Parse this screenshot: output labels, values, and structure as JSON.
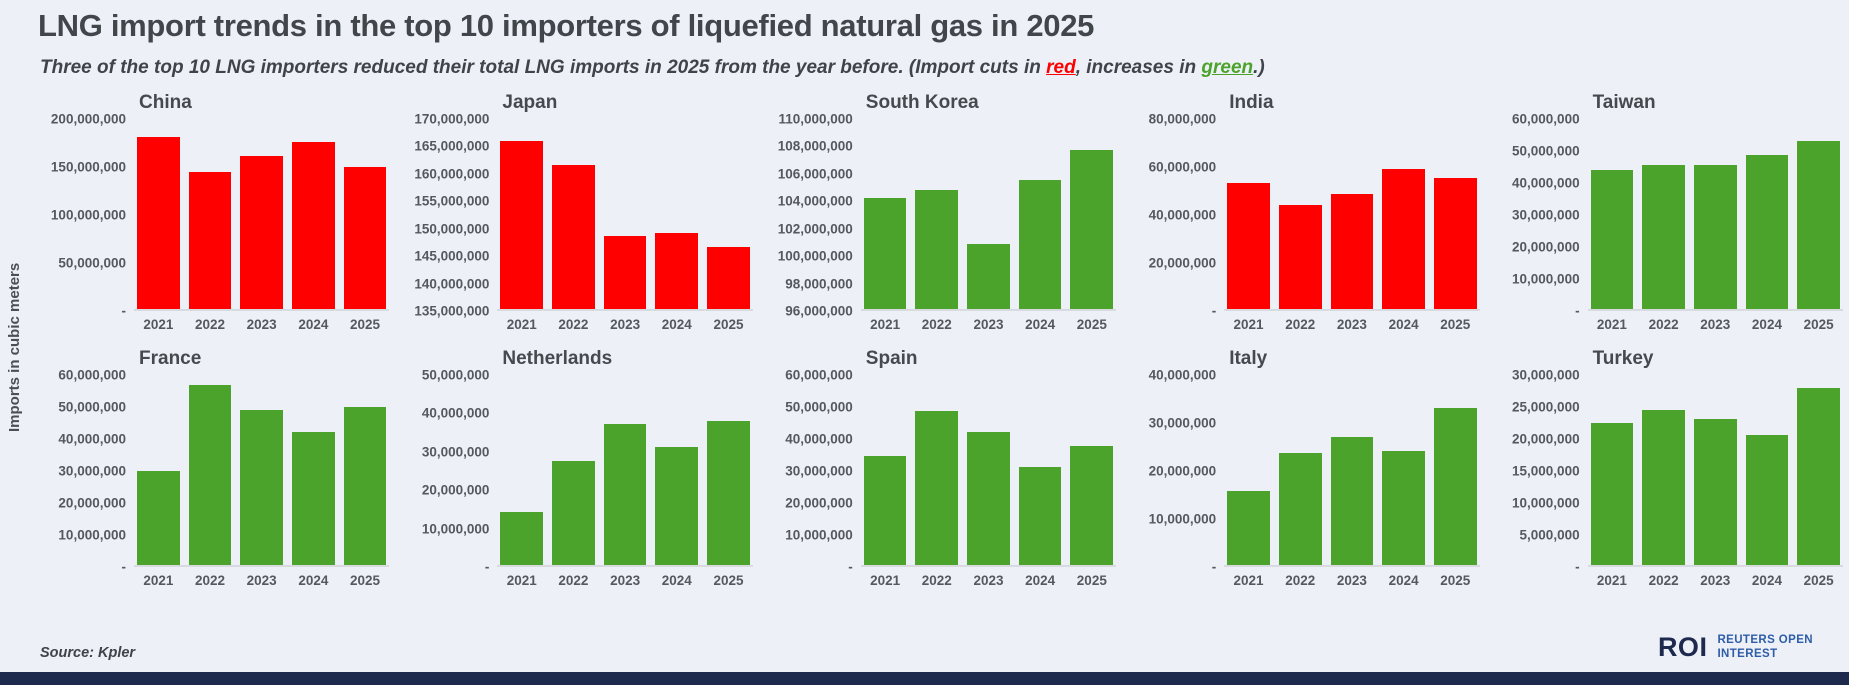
{
  "header": {
    "title": "LNG import trends in the top 10 importers of liquefied natural gas in 2025",
    "subtitle": {
      "before": "Three of the top 10 LNG importers reduced their total LNG imports in 2025 from the year before. (Import cuts in ",
      "red_word": "red",
      "middle": ", increases in ",
      "green_word": "green",
      "after": ".)"
    }
  },
  "y_axis_label": "Imports in cubic meters",
  "footer": {
    "source": "Source: Kpler",
    "logo": {
      "mark": "ROI",
      "line1": "REUTERS OPEN",
      "line2": "INTEREST"
    }
  },
  "colors": {
    "red": "#fe0000",
    "green": "#4ca32b",
    "navy": "#1e2a4d",
    "blue": "#2e5ca8",
    "background": "#edf1f7"
  },
  "chart_data": [
    {
      "type": "bar",
      "title": "China",
      "color": "red",
      "categories": [
        "2021",
        "2022",
        "2023",
        "2024",
        "2025"
      ],
      "values": [
        181000000,
        144000000,
        161000000,
        176000000,
        150000000
      ],
      "y_ticks": [
        "200,000,000",
        "150,000,000",
        "100,000,000",
        "50,000,000",
        "-"
      ],
      "y_min": 0,
      "y_max": 200000000,
      "ylabel": "Imports in cubic meters",
      "grid": false
    },
    {
      "type": "bar",
      "title": "Japan",
      "color": "red",
      "categories": [
        "2021",
        "2022",
        "2023",
        "2024",
        "2025"
      ],
      "values": [
        166000000,
        161500000,
        148500000,
        149000000,
        146500000
      ],
      "y_ticks": [
        "170,000,000",
        "165,000,000",
        "160,000,000",
        "155,000,000",
        "150,000,000",
        "145,000,000",
        "140,000,000",
        "135,000,000"
      ],
      "y_min": 135000000,
      "y_max": 170000000,
      "grid": false
    },
    {
      "type": "bar",
      "title": "South Korea",
      "color": "green",
      "categories": [
        "2021",
        "2022",
        "2023",
        "2024",
        "2025"
      ],
      "values": [
        104200000,
        104800000,
        100800000,
        105500000,
        107700000
      ],
      "y_ticks": [
        "110,000,000",
        "108,000,000",
        "106,000,000",
        "104,000,000",
        "102,000,000",
        "100,000,000",
        "98,000,000",
        "96,000,000"
      ],
      "y_min": 96000000,
      "y_max": 110000000,
      "grid": false
    },
    {
      "type": "bar",
      "title": "India",
      "color": "red",
      "categories": [
        "2021",
        "2022",
        "2023",
        "2024",
        "2025"
      ],
      "values": [
        53000000,
        44000000,
        48500000,
        59000000,
        55000000
      ],
      "y_ticks": [
        "80,000,000",
        "60,000,000",
        "40,000,000",
        "20,000,000",
        "-"
      ],
      "y_min": 0,
      "y_max": 80000000,
      "grid": false
    },
    {
      "type": "bar",
      "title": "Taiwan",
      "color": "green",
      "categories": [
        "2021",
        "2022",
        "2023",
        "2024",
        "2025"
      ],
      "values": [
        44000000,
        45500000,
        45500000,
        48500000,
        53000000
      ],
      "y_ticks": [
        "60,000,000",
        "50,000,000",
        "40,000,000",
        "30,000,000",
        "20,000,000",
        "10,000,000",
        "-"
      ],
      "y_min": 0,
      "y_max": 60000000,
      "grid": false
    },
    {
      "type": "bar",
      "title": "France",
      "color": "green",
      "categories": [
        "2021",
        "2022",
        "2023",
        "2024",
        "2025"
      ],
      "values": [
        29800000,
        57000000,
        49000000,
        42000000,
        50000000
      ],
      "y_ticks": [
        "60,000,000",
        "50,000,000",
        "40,000,000",
        "30,000,000",
        "20,000,000",
        "10,000,000",
        "-"
      ],
      "y_min": 0,
      "y_max": 60000000,
      "grid": false
    },
    {
      "type": "bar",
      "title": "Netherlands",
      "color": "green",
      "categories": [
        "2021",
        "2022",
        "2023",
        "2024",
        "2025"
      ],
      "values": [
        14000000,
        27500000,
        37000000,
        31000000,
        38000000
      ],
      "y_ticks": [
        "50,000,000",
        "40,000,000",
        "30,000,000",
        "20,000,000",
        "10,000,000",
        "-"
      ],
      "y_min": 0,
      "y_max": 50000000,
      "grid": false
    },
    {
      "type": "bar",
      "title": "Spain",
      "color": "green",
      "categories": [
        "2021",
        "2022",
        "2023",
        "2024",
        "2025"
      ],
      "values": [
        34500000,
        48500000,
        42000000,
        31000000,
        37500000
      ],
      "y_ticks": [
        "60,000,000",
        "50,000,000",
        "40,000,000",
        "30,000,000",
        "20,000,000",
        "10,000,000",
        "-"
      ],
      "y_min": 0,
      "y_max": 60000000,
      "grid": false
    },
    {
      "type": "bar",
      "title": "Italy",
      "color": "green",
      "categories": [
        "2021",
        "2022",
        "2023",
        "2024",
        "2025"
      ],
      "values": [
        15500000,
        23500000,
        27000000,
        24000000,
        33000000
      ],
      "y_ticks": [
        "40,000,000",
        "30,000,000",
        "20,000,000",
        "10,000,000",
        "-"
      ],
      "y_min": 0,
      "y_max": 40000000,
      "grid": false
    },
    {
      "type": "bar",
      "title": "Turkey",
      "color": "green",
      "categories": [
        "2021",
        "2022",
        "2023",
        "2024",
        "2025"
      ],
      "values": [
        22500000,
        24500000,
        23000000,
        20500000,
        28000000
      ],
      "y_ticks": [
        "30,000,000",
        "25,000,000",
        "20,000,000",
        "15,000,000",
        "10,000,000",
        "5,000,000",
        "-"
      ],
      "y_min": 0,
      "y_max": 30000000,
      "grid": false
    }
  ]
}
